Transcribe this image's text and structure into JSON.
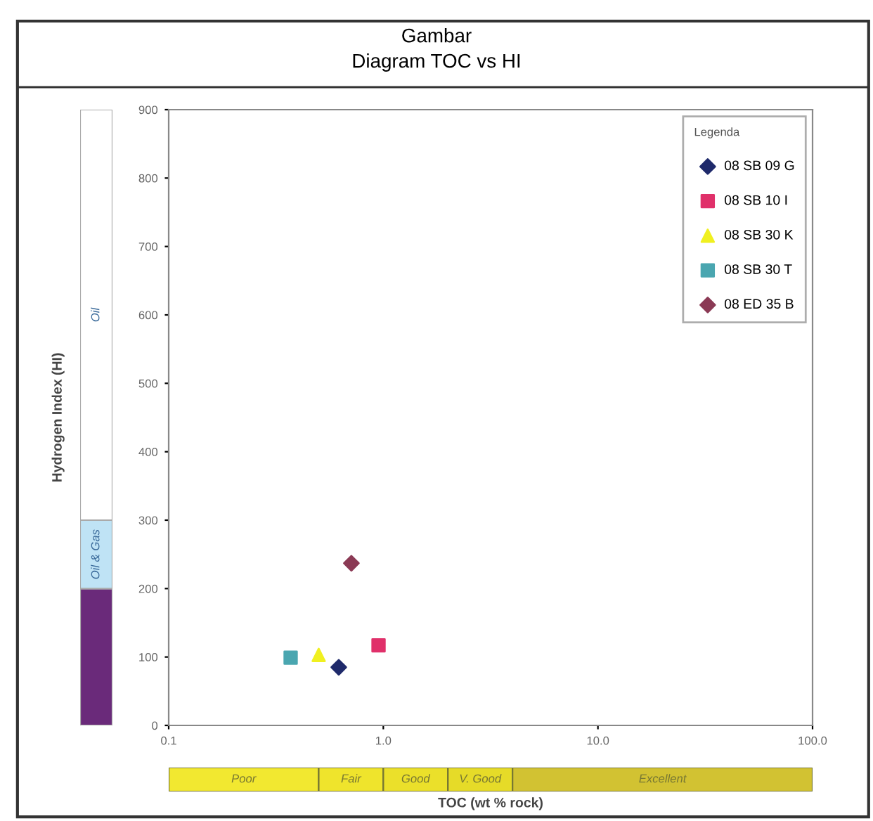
{
  "chart_data": [
    {
      "type": "scatter",
      "title": "Gambar",
      "subtitle": "Diagram TOC vs HI",
      "legend_title": "Legenda",
      "log": "x",
      "xlim": [
        0.1,
        100
      ],
      "xticks": [
        {
          "value": 0.1,
          "label": "0.1"
        },
        {
          "value": 1,
          "label": "1.0"
        },
        {
          "value": 10,
          "label": "10.0"
        },
        {
          "value": 100,
          "label": "100.0"
        }
      ],
      "ylim": [
        0,
        900
      ],
      "yticks": [
        0,
        100,
        200,
        300,
        400,
        500,
        600,
        700,
        800,
        900
      ],
      "legend": "top right",
      "series": [
        {
          "name": "08 SB 09 G",
          "color": "#1f2a6b",
          "marker": "diamond",
          "x": [
            0.62
          ],
          "values": [
            85
          ]
        },
        {
          "name": "08 SB 10 I",
          "color": "#e0306a",
          "marker": "square",
          "x": [
            0.95
          ],
          "values": [
            117
          ]
        },
        {
          "name": "08 SB 30 K",
          "color": "#f0f020",
          "marker": "triangle",
          "x": [
            0.5
          ],
          "values": [
            103
          ]
        },
        {
          "name": "08 SB 30 T",
          "color": "#4aa6b0",
          "marker": "square",
          "x": [
            0.37
          ],
          "values": [
            99
          ]
        },
        {
          "name": "08 ED 35 B",
          "color": "#8b3a55",
          "marker": "diamond",
          "x": [
            0.71
          ],
          "values": [
            237
          ]
        }
      ]
    },
    {
      "type": "bar",
      "stacked": true,
      "ylabel": "Hydrogen Index (HI)",
      "categories": [
        null
      ],
      "ylim": [
        0,
        900
      ],
      "tick_labels": false,
      "series": [
        {
          "color": "#6a2a7a",
          "values": [
            200
          ]
        },
        {
          "name": "Oil & Gas",
          "color": "#bfe3f5",
          "values": [
            100
          ]
        },
        {
          "name": "Oil",
          "color": "#ffffff",
          "values": [
            600
          ]
        }
      ]
    },
    {
      "type": "bar",
      "orientation": "horizontal",
      "log": "x",
      "xlabel": "TOC (wt % rock)",
      "categories": [
        null
      ],
      "xlim": [
        0.1,
        100
      ],
      "tick_labels": false,
      "series": [
        {
          "name": "Poor",
          "color": "#f2e830",
          "base": [
            0.1
          ],
          "values": [
            0.4
          ]
        },
        {
          "name": "Fair",
          "color": "#efe42c",
          "base": [
            0.5
          ],
          "values": [
            0.5
          ]
        },
        {
          "name": "Good",
          "color": "#ebe02a",
          "base": [
            1
          ],
          "values": [
            1
          ]
        },
        {
          "name": "V. Good",
          "color": "#e6db28",
          "base": [
            2
          ],
          "values": [
            2
          ]
        },
        {
          "name": "Excellent",
          "color": "#d2c232",
          "base": [
            4
          ],
          "values": [
            96
          ]
        }
      ]
    }
  ]
}
